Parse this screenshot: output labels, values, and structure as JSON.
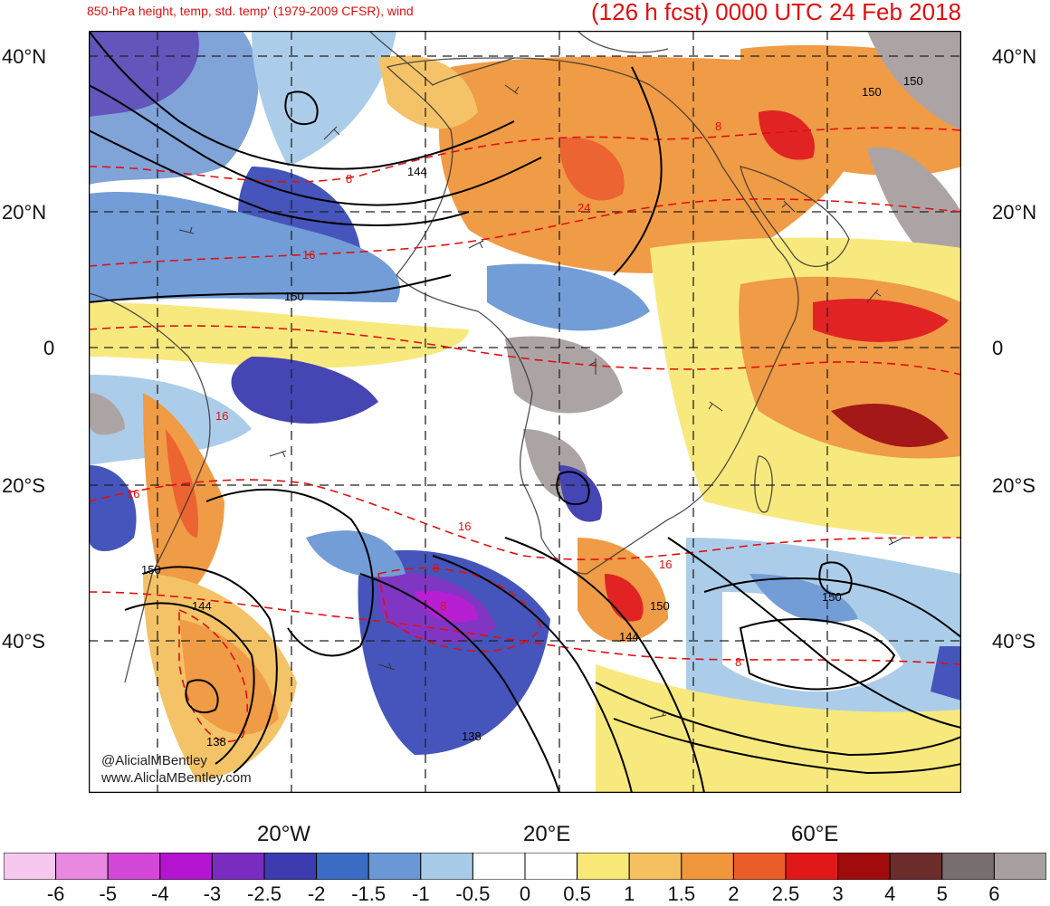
{
  "header": {
    "left_title": "850-hPa height, temp, std. temp' (1979-2009 CFSR), wind",
    "right_title": "(126 h fcst) 0000 UTC 24 Feb 2018"
  },
  "axes": {
    "lat_labels": [
      "40°N",
      "20°N",
      "0",
      "20°S",
      "40°S"
    ],
    "lon_labels": [
      "20°W",
      "20°E",
      "60°E"
    ]
  },
  "contours": {
    "height_labels": [
      "144",
      "150",
      "150",
      "144",
      "138",
      "150",
      "144",
      "150",
      "138",
      "150",
      "150"
    ],
    "temp_labels": [
      "8",
      "16",
      "24",
      "8",
      "16",
      "16",
      "16",
      "8",
      "16",
      "8",
      "8"
    ]
  },
  "credits": {
    "twitter": "@AlicialMBentley",
    "website": "www.AliciaMBentley.com"
  },
  "colorbar": {
    "ticks": [
      "-6",
      "-5",
      "-4",
      "-3",
      "-2.5",
      "-2",
      "-1.5",
      "-1",
      "-0.5",
      "0",
      "0.5",
      "1",
      "1.5",
      "2",
      "2.5",
      "3",
      "4",
      "5",
      "6"
    ],
    "colors": [
      "#f6c8ee",
      "#e988e0",
      "#d348d8",
      "#b414d0",
      "#7a2cc0",
      "#3c3cb0",
      "#3b6cc4",
      "#6b98d4",
      "#a8cbe8",
      "#ffffff",
      "#ffffff",
      "#f8e878",
      "#f4c060",
      "#f0963c",
      "#ea5c28",
      "#e01818",
      "#a00c0c",
      "#6c2c2c",
      "#786e6e",
      "#a8a0a0"
    ]
  }
}
